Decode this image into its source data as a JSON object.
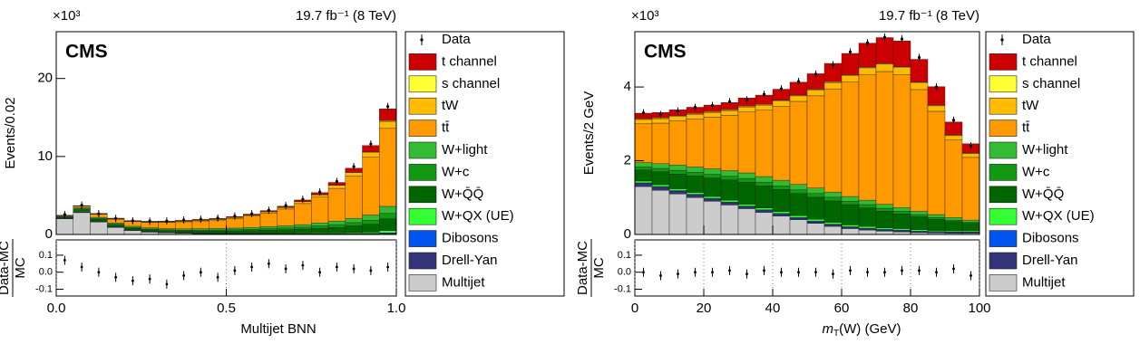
{
  "chart_data": [
    {
      "type": "histogram",
      "stacked": true,
      "multiplier": "×10³",
      "lumi": "19.7 fb⁻¹ (8 TeV)",
      "cms": "CMS",
      "y_label": "Events/0.02",
      "ratio_label": [
        "Data-MC",
        "MC"
      ],
      "x_label_parts": [
        "Multijet BNN"
      ],
      "bins": [
        0,
        0.05,
        0.1,
        0.15,
        0.2,
        0.25,
        0.3,
        0.35,
        0.4,
        0.45,
        0.5,
        0.55,
        0.6,
        0.65,
        0.7,
        0.75,
        0.8,
        0.85,
        0.9,
        0.95,
        1.0
      ],
      "xlim": [
        0,
        1.0
      ],
      "xticks": [
        {
          "value": 0,
          "label": "0.0"
        },
        {
          "value": 0.5,
          "label": "0.5"
        },
        {
          "value": 1,
          "label": "1.0"
        }
      ],
      "ylim": [
        0,
        26
      ],
      "yticks": [
        0,
        10,
        20
      ],
      "ratio_ylim": [
        -0.14,
        0.19
      ],
      "ratio_yticks": [
        -0.1,
        {
          "value": 0,
          "label": "0.0"
        },
        0.1
      ],
      "data_label": "Data",
      "data_values": [
        2.55,
        3.75,
        2.65,
        2.05,
        1.75,
        1.7,
        1.72,
        1.85,
        1.95,
        2.1,
        2.35,
        2.65,
        3.1,
        3.7,
        4.5,
        5.45,
        6.8,
        8.7,
        11.6,
        16.4
      ],
      "ratio_values": [
        0.07,
        0.03,
        0.0,
        -0.03,
        -0.05,
        -0.04,
        -0.07,
        -0.02,
        0.0,
        -0.03,
        0.01,
        0.03,
        0.05,
        0.02,
        0.04,
        0.0,
        0.03,
        0.02,
        0.01,
        0.03
      ],
      "series": [
        {
          "name": "t channel",
          "color": "#cc0000",
          "values": [
            0.02,
            0.05,
            0.06,
            0.06,
            0.06,
            0.06,
            0.07,
            0.08,
            0.08,
            0.09,
            0.1,
            0.11,
            0.13,
            0.15,
            0.2,
            0.25,
            0.35,
            0.5,
            0.8,
            1.5
          ]
        },
        {
          "name": "s channel",
          "color": "#ffff33",
          "values": [
            0,
            0,
            0.01,
            0.01,
            0.01,
            0.01,
            0.01,
            0.01,
            0.01,
            0.01,
            0.01,
            0.01,
            0.02,
            0.02,
            0.02,
            0.03,
            0.03,
            0.04,
            0.05,
            0.1
          ]
        },
        {
          "name": "tW",
          "color": "#ffbb00",
          "values": [
            0.01,
            0.02,
            0.04,
            0.05,
            0.06,
            0.07,
            0.08,
            0.09,
            0.1,
            0.11,
            0.12,
            0.14,
            0.16,
            0.2,
            0.24,
            0.3,
            0.38,
            0.48,
            0.65,
            0.9
          ]
        },
        {
          "name": "tt̄",
          "color": "#ff9900",
          "values": [
            0.1,
            0.2,
            0.4,
            0.5,
            0.6,
            0.7,
            0.8,
            0.9,
            1.0,
            1.1,
            1.25,
            1.45,
            1.75,
            2.15,
            2.7,
            3.3,
            4.2,
            5.4,
            7.4,
            10.0
          ]
        },
        {
          "name": "W+light",
          "color": "#33bb33",
          "values": [
            0.08,
            0.15,
            0.15,
            0.15,
            0.15,
            0.15,
            0.15,
            0.16,
            0.17,
            0.18,
            0.2,
            0.22,
            0.25,
            0.28,
            0.32,
            0.38,
            0.45,
            0.55,
            0.7,
            0.9
          ]
        },
        {
          "name": "W+c",
          "color": "#119911",
          "values": [
            0.05,
            0.1,
            0.1,
            0.1,
            0.1,
            0.1,
            0.1,
            0.1,
            0.12,
            0.13,
            0.15,
            0.17,
            0.2,
            0.22,
            0.25,
            0.3,
            0.35,
            0.42,
            0.5,
            0.7
          ]
        },
        {
          "name": "W+Q̄Q̄",
          "color": "#006600",
          "values": [
            0.1,
            0.2,
            0.2,
            0.2,
            0.2,
            0.2,
            0.2,
            0.22,
            0.24,
            0.26,
            0.3,
            0.34,
            0.38,
            0.44,
            0.5,
            0.6,
            0.7,
            0.85,
            1.0,
            1.5
          ]
        },
        {
          "name": "W+QX (UE)",
          "color": "#33ff33",
          "values": [
            0.05,
            0.08,
            0.06,
            0.05,
            0.04,
            0.04,
            0.04,
            0.04,
            0.05,
            0.05,
            0.05,
            0.06,
            0.06,
            0.07,
            0.08,
            0.09,
            0.1,
            0.12,
            0.15,
            0.3
          ]
        },
        {
          "name": "Dibosons",
          "color": "#0055ee",
          "values": [
            0.01,
            0.02,
            0.02,
            0.02,
            0.02,
            0.02,
            0.02,
            0.02,
            0.02,
            0.02,
            0.02,
            0.02,
            0.02,
            0.02,
            0.03,
            0.03,
            0.03,
            0.04,
            0.05,
            0.08
          ]
        },
        {
          "name": "Drell-Yan",
          "color": "#333377",
          "values": [
            0.05,
            0.08,
            0.06,
            0.05,
            0.04,
            0.04,
            0.04,
            0.04,
            0.04,
            0.04,
            0.04,
            0.04,
            0.05,
            0.05,
            0.05,
            0.06,
            0.06,
            0.07,
            0.08,
            0.1
          ]
        },
        {
          "name": "Multijet",
          "color": "#cccccc",
          "values": [
            2.0,
            2.8,
            1.6,
            0.9,
            0.5,
            0.3,
            0.2,
            0.15,
            0.1,
            0.08,
            0.06,
            0.05,
            0.04,
            0.03,
            0.03,
            0.02,
            0.02,
            0.02,
            0.02,
            0.02
          ]
        }
      ]
    },
    {
      "type": "histogram",
      "stacked": true,
      "multiplier": "×10³",
      "lumi": "19.7 fb⁻¹ (8 TeV)",
      "cms": "CMS",
      "y_label": "Events/2 GeV",
      "ratio_label": [
        "Data-MC",
        "MC"
      ],
      "x_label_parts": [
        "m",
        "T",
        "(W) (GeV)"
      ],
      "bins": [
        0,
        5,
        10,
        15,
        20,
        25,
        30,
        35,
        40,
        45,
        50,
        55,
        60,
        65,
        70,
        75,
        80,
        85,
        90,
        95,
        100
      ],
      "xlim": [
        0,
        100
      ],
      "xticks": [
        0,
        20,
        40,
        60,
        80,
        100
      ],
      "ylim": [
        0,
        5.5
      ],
      "yticks": [
        0,
        2,
        4
      ],
      "ratio_ylim": [
        -0.14,
        0.19
      ],
      "ratio_yticks": [
        -0.1,
        {
          "value": 0,
          "label": "0.0"
        },
        0.1
      ],
      "data_label": "Data",
      "data_values": [
        3.3,
        3.25,
        3.35,
        3.45,
        3.5,
        3.6,
        3.65,
        3.8,
        3.95,
        4.15,
        4.35,
        4.6,
        4.95,
        5.2,
        5.35,
        5.3,
        4.8,
        4.0,
        3.1,
        2.4
      ],
      "ratio_values": [
        0.0,
        -0.02,
        -0.01,
        0.0,
        0.0,
        0.01,
        -0.01,
        0.01,
        0.0,
        0.0,
        0.0,
        -0.01,
        0.01,
        0.0,
        0.0,
        0.01,
        0.01,
        0.0,
        0.02,
        -0.02
      ],
      "series": [
        {
          "name": "t channel",
          "color": "#cc0000",
          "values": [
            0.15,
            0.15,
            0.16,
            0.17,
            0.18,
            0.2,
            0.22,
            0.25,
            0.3,
            0.35,
            0.42,
            0.5,
            0.58,
            0.65,
            0.7,
            0.7,
            0.62,
            0.5,
            0.35,
            0.25
          ]
        },
        {
          "name": "s channel",
          "color": "#ffff33",
          "values": [
            0.02,
            0.02,
            0.02,
            0.02,
            0.02,
            0.02,
            0.02,
            0.02,
            0.02,
            0.02,
            0.02,
            0.02,
            0.02,
            0.02,
            0.02,
            0.02,
            0.02,
            0.02,
            0.02,
            0.02
          ]
        },
        {
          "name": "tW",
          "color": "#ffbb00",
          "values": [
            0.12,
            0.12,
            0.12,
            0.13,
            0.13,
            0.13,
            0.14,
            0.14,
            0.15,
            0.15,
            0.16,
            0.17,
            0.18,
            0.19,
            0.2,
            0.2,
            0.18,
            0.15,
            0.12,
            0.1
          ]
        },
        {
          "name": "tt̄",
          "color": "#ff9900",
          "values": [
            1.05,
            1.1,
            1.2,
            1.3,
            1.4,
            1.5,
            1.65,
            1.8,
            2.0,
            2.25,
            2.5,
            2.8,
            3.1,
            3.4,
            3.6,
            3.6,
            3.3,
            2.8,
            2.1,
            1.7
          ]
        },
        {
          "name": "W+light",
          "color": "#33bb33",
          "values": [
            0.12,
            0.13,
            0.14,
            0.14,
            0.15,
            0.15,
            0.15,
            0.15,
            0.15,
            0.15,
            0.15,
            0.14,
            0.13,
            0.12,
            0.11,
            0.1,
            0.09,
            0.08,
            0.07,
            0.06
          ]
        },
        {
          "name": "W+c",
          "color": "#119911",
          "values": [
            0.08,
            0.09,
            0.1,
            0.1,
            0.1,
            0.1,
            0.1,
            0.1,
            0.1,
            0.1,
            0.1,
            0.1,
            0.09,
            0.09,
            0.08,
            0.07,
            0.06,
            0.05,
            0.04,
            0.03
          ]
        },
        {
          "name": "W+Q̄Q̄",
          "color": "#006600",
          "values": [
            0.3,
            0.35,
            0.4,
            0.45,
            0.5,
            0.55,
            0.6,
            0.6,
            0.6,
            0.6,
            0.6,
            0.58,
            0.55,
            0.5,
            0.45,
            0.4,
            0.35,
            0.3,
            0.25,
            0.2
          ]
        },
        {
          "name": "W+QX (UE)",
          "color": "#33ff33",
          "values": [
            0.05,
            0.05,
            0.05,
            0.05,
            0.05,
            0.05,
            0.05,
            0.05,
            0.05,
            0.05,
            0.05,
            0.05,
            0.05,
            0.05,
            0.04,
            0.04,
            0.04,
            0.03,
            0.03,
            0.03
          ]
        },
        {
          "name": "Dibosons",
          "color": "#0055ee",
          "values": [
            0.02,
            0.02,
            0.02,
            0.02,
            0.02,
            0.02,
            0.02,
            0.02,
            0.02,
            0.02,
            0.02,
            0.02,
            0.02,
            0.02,
            0.02,
            0.02,
            0.02,
            0.02,
            0.02,
            0.02
          ]
        },
        {
          "name": "Drell-Yan",
          "color": "#333377",
          "values": [
            0.08,
            0.08,
            0.07,
            0.07,
            0.06,
            0.06,
            0.05,
            0.05,
            0.05,
            0.04,
            0.04,
            0.04,
            0.03,
            0.03,
            0.03,
            0.03,
            0.02,
            0.02,
            0.02,
            0.02
          ]
        },
        {
          "name": "Multijet",
          "color": "#cccccc",
          "values": [
            1.3,
            1.2,
            1.1,
            1.0,
            0.9,
            0.8,
            0.7,
            0.6,
            0.5,
            0.4,
            0.3,
            0.22,
            0.16,
            0.12,
            0.09,
            0.07,
            0.05,
            0.04,
            0.03,
            0.03
          ]
        }
      ]
    }
  ]
}
